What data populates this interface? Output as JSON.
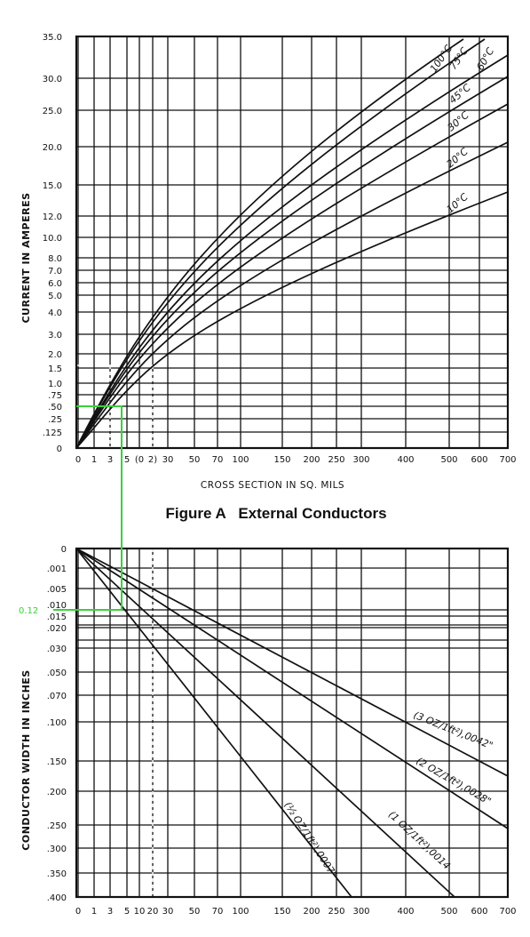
{
  "chart_data": [
    {
      "id": "top",
      "type": "line",
      "title": "Figure A   External Conductors",
      "xlabel": "CROSS SECTION IN SQ. MILS",
      "ylabel": "CURRENT IN AMPERES",
      "x_ticks": [
        "0",
        "1",
        "3",
        "5",
        "(0",
        "2)",
        "30",
        "50",
        "70",
        "100",
        "150",
        "200",
        "250",
        "300",
        "400",
        "500",
        "600",
        "700"
      ],
      "y_ticks": [
        "0",
        ".125",
        ".25",
        ".50",
        ".75",
        "1.0",
        "1.5",
        "2.0",
        "3.0",
        "4.0",
        "5.0",
        "6.0",
        "7.0",
        "8.0",
        "10.0",
        "12.0",
        "15.0",
        "20.0",
        "25.0",
        "30.0",
        "35.0"
      ],
      "series": [
        {
          "name": "10°C",
          "end_current": 14
        },
        {
          "name": "20°C",
          "end_current": 20.5
        },
        {
          "name": "30°C",
          "end_current": 25.5
        },
        {
          "name": "45°C",
          "end_current": 30
        },
        {
          "name": "60°C",
          "end_current": 33
        },
        {
          "name": "75°C",
          "end_current": 35
        },
        {
          "name": "100°C",
          "end_current": 35
        }
      ]
    },
    {
      "id": "bottom",
      "type": "line",
      "xlabel": "",
      "ylabel": "CONDUCTOR WIDTH IN INCHES",
      "x_ticks": [
        "0",
        "1",
        "3",
        "5",
        "10",
        "20",
        "30",
        "50",
        "70",
        "100",
        "150",
        "200",
        "250",
        "300",
        "400",
        "500",
        "600",
        "700"
      ],
      "y_ticks": [
        "0",
        ".001",
        ".005",
        ".010",
        ".015",
        ".020",
        ".030",
        ".050",
        ".070",
        ".100",
        ".150",
        ".200",
        ".250",
        ".300",
        ".350",
        ".400"
      ],
      "series": [
        {
          "name": "(3 OZ/1ft²),0042\"",
          "end_x": 700,
          "end_y": ".150"
        },
        {
          "name": "(2 OZ/1ft²),0028\"",
          "end_x": 700,
          "end_y": ".250"
        },
        {
          "name": "(1 OZ/1ft²),0014",
          "end_x": 525,
          "end_y": ".400"
        },
        {
          "name": "(½ OZ/1ft²),0007\"",
          "end_x": 260,
          "end_y": ".400"
        }
      ],
      "annotation": {
        "text": "0.12",
        "color": "#39d13a"
      }
    }
  ]
}
